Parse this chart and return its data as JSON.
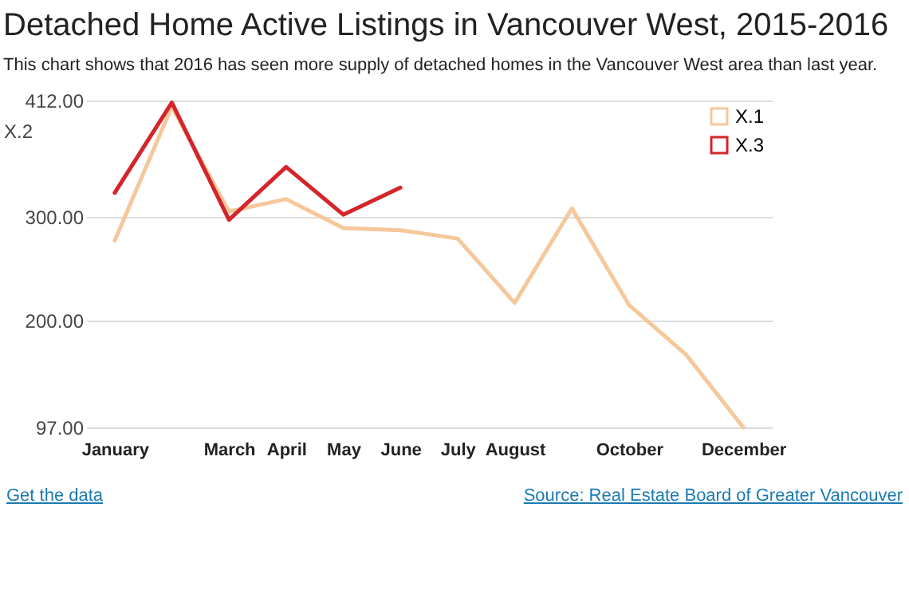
{
  "chart_data": {
    "type": "line",
    "title": "Detached Home Active Listings in Vancouver West, 2015-2016",
    "subtitle": "This chart shows that 2016 has seen more supply of detached homes in the Vancouver West area than last year.",
    "ylabel": "X.2",
    "categories": [
      "January",
      null,
      "March",
      "April",
      "May",
      "June",
      "July",
      "August",
      null,
      "October",
      null,
      "December"
    ],
    "series": [
      {
        "name": "X.1",
        "color": "#f5c89c",
        "values": [
          277,
          406,
          305,
          317,
          289,
          287,
          279,
          217,
          308,
          215,
          167,
          97
        ]
      },
      {
        "name": "X.3",
        "color": "#d3252b",
        "values": [
          323,
          410,
          297,
          348,
          302,
          328,
          null,
          null,
          null,
          null,
          null,
          null
        ]
      }
    ],
    "ylim": [
      97,
      412
    ],
    "yticks": [
      {
        "value": 97,
        "label": "97.00"
      },
      {
        "value": 200,
        "label": "200.00"
      },
      {
        "value": 300,
        "label": "300.00"
      },
      {
        "value": 412,
        "label": "412.00"
      }
    ],
    "grid": "y",
    "legend": "top right",
    "marker": "none",
    "line_style": "solid",
    "annotations": [
      "Source: Real Estate Board of Greater Vancouver",
      "Get the data"
    ]
  }
}
